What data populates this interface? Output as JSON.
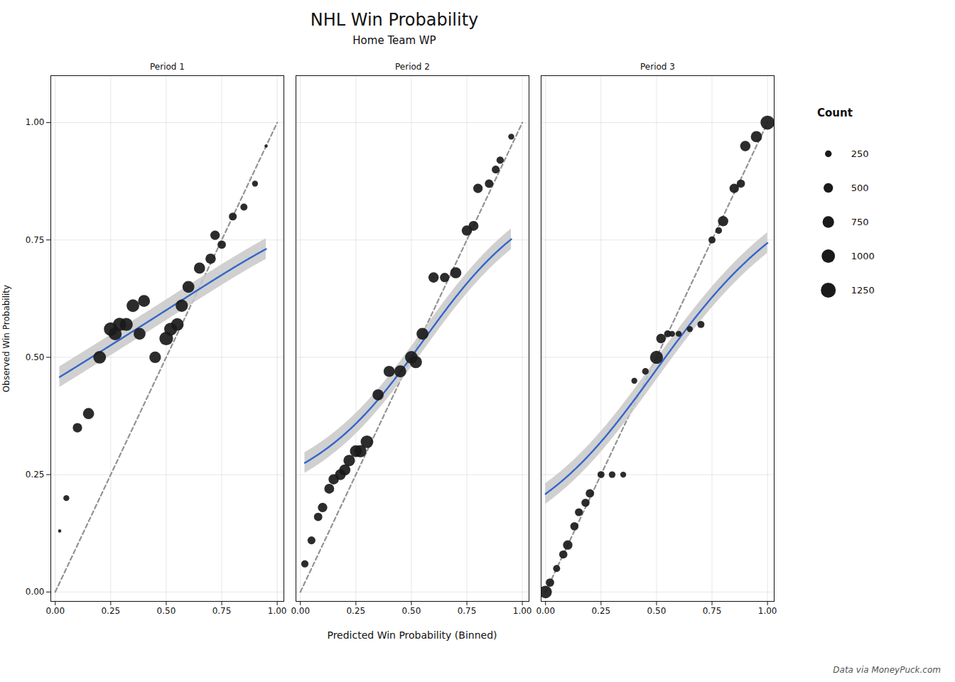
{
  "chart_data": {
    "type": "scatter",
    "title": "NHL Win Probability",
    "subtitle": "Home Team WP",
    "xlabel": "Predicted Win Probability (Binned)",
    "ylabel": "Observed Win Probability",
    "caption": "Data via MoneyPuck.com",
    "panels": [
      {
        "name": "Period 1",
        "x": [
          0.02,
          0.05,
          0.1,
          0.15,
          0.2,
          0.25,
          0.27,
          0.29,
          0.32,
          0.35,
          0.38,
          0.4,
          0.45,
          0.5,
          0.52,
          0.55,
          0.57,
          0.6,
          0.65,
          0.7,
          0.72,
          0.75,
          0.8,
          0.85,
          0.9,
          0.95
        ],
        "y": [
          0.13,
          0.2,
          0.35,
          0.38,
          0.5,
          0.56,
          0.55,
          0.57,
          0.57,
          0.61,
          0.55,
          0.62,
          0.5,
          0.54,
          0.56,
          0.57,
          0.61,
          0.65,
          0.69,
          0.71,
          0.76,
          0.74,
          0.8,
          0.82,
          0.87,
          0.95
        ],
        "count": [
          60,
          200,
          500,
          700,
          900,
          1050,
          950,
          1000,
          950,
          900,
          800,
          800,
          750,
          1050,
          950,
          900,
          850,
          800,
          700,
          600,
          500,
          400,
          350,
          280,
          200,
          60
        ]
      },
      {
        "name": "Period 2",
        "x": [
          0.02,
          0.05,
          0.08,
          0.1,
          0.13,
          0.15,
          0.18,
          0.2,
          0.22,
          0.25,
          0.27,
          0.3,
          0.35,
          0.4,
          0.45,
          0.5,
          0.52,
          0.55,
          0.6,
          0.65,
          0.7,
          0.75,
          0.78,
          0.8,
          0.85,
          0.88,
          0.9,
          0.95
        ],
        "y": [
          0.06,
          0.11,
          0.16,
          0.18,
          0.22,
          0.24,
          0.25,
          0.26,
          0.28,
          0.3,
          0.3,
          0.32,
          0.42,
          0.47,
          0.47,
          0.5,
          0.49,
          0.55,
          0.67,
          0.67,
          0.68,
          0.77,
          0.78,
          0.86,
          0.87,
          0.9,
          0.92,
          0.97
        ],
        "count": [
          300,
          350,
          400,
          500,
          550,
          600,
          650,
          700,
          750,
          800,
          850,
          900,
          700,
          700,
          800,
          900,
          850,
          800,
          600,
          500,
          700,
          600,
          550,
          500,
          400,
          350,
          300,
          200
        ]
      },
      {
        "name": "Period 3",
        "x": [
          0.0,
          0.02,
          0.05,
          0.08,
          0.1,
          0.13,
          0.15,
          0.18,
          0.2,
          0.25,
          0.3,
          0.35,
          0.4,
          0.45,
          0.5,
          0.52,
          0.55,
          0.57,
          0.6,
          0.65,
          0.7,
          0.75,
          0.78,
          0.8,
          0.85,
          0.88,
          0.9,
          0.95,
          1.0
        ],
        "y": [
          0.0,
          0.02,
          0.05,
          0.08,
          0.1,
          0.14,
          0.17,
          0.19,
          0.21,
          0.25,
          0.25,
          0.25,
          0.45,
          0.47,
          0.5,
          0.54,
          0.55,
          0.55,
          0.55,
          0.56,
          0.57,
          0.75,
          0.77,
          0.79,
          0.86,
          0.87,
          0.95,
          0.97,
          1.0
        ],
        "count": [
          900,
          400,
          280,
          380,
          500,
          380,
          350,
          380,
          400,
          280,
          250,
          200,
          200,
          250,
          950,
          500,
          280,
          200,
          200,
          200,
          280,
          280,
          250,
          600,
          500,
          380,
          600,
          700,
          1100
        ]
      }
    ],
    "color": "#1a1a1a",
    "smooth": {
      "color": "#3366cc",
      "band_color": "#c8c8c8"
    },
    "reference_line": {
      "x": [
        0,
        1
      ],
      "y": [
        0,
        1
      ],
      "color": "#808080",
      "line_style": "dashed"
    },
    "size_legend": {
      "title": "Count",
      "values": [
        250,
        500,
        750,
        1000,
        1250
      ]
    },
    "xlim": [
      -0.02,
      1.03
    ],
    "ylim": [
      -0.02,
      1.1
    ],
    "xticks": [
      {
        "value": 0,
        "label": "0.00"
      },
      {
        "value": 0.25,
        "label": "0.25"
      },
      {
        "value": 0.5,
        "label": "0.50"
      },
      {
        "value": 0.75,
        "label": "0.75"
      },
      {
        "value": 1,
        "label": "1.00"
      }
    ],
    "yticks": [
      {
        "value": 0,
        "label": "0.00"
      },
      {
        "value": 0.25,
        "label": "0.25"
      },
      {
        "value": 0.5,
        "label": "0.50"
      },
      {
        "value": 0.75,
        "label": "0.75"
      },
      {
        "value": 1,
        "label": "1.00"
      }
    ],
    "grid": true
  }
}
